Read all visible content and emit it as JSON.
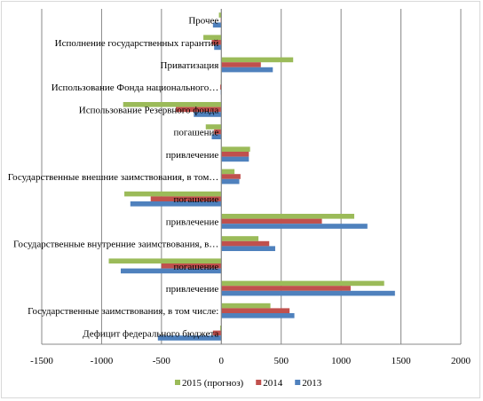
{
  "chart_data": {
    "type": "bar",
    "orientation": "horizontal",
    "title": "",
    "xlabel": "",
    "ylabel": "",
    "xlim": [
      -1500,
      2000
    ],
    "x_ticks": [
      -1500,
      -1000,
      -500,
      0,
      500,
      1000,
      1500,
      2000
    ],
    "grid": true,
    "legend_position": "bottom",
    "categories": [
      "Дефицит федерального бюджета",
      "Государственные заимствования, в том числе:",
      "привлечение",
      "погашение",
      "Государственные внутренние заимствования, в…",
      "привлечение",
      "погашение",
      "Государственные внешние заимствования, в том…",
      "привлечение",
      "погашение",
      "Использование Резервного фонда",
      "Использование Фонда национального…",
      "Приватизация",
      "Исполнение государственных гарантий",
      "Прочее"
    ],
    "series": [
      {
        "name": "2015 (прогноз)",
        "color": "#9bbb59",
        "values": [
          -10,
          410,
          1360,
          -940,
          310,
          1110,
          -810,
          110,
          240,
          -130,
          -820,
          -5,
          600,
          -150,
          -20
        ]
      },
      {
        "name": "2014",
        "color": "#c0504d",
        "values": [
          -70,
          570,
          1080,
          -500,
          400,
          840,
          -590,
          160,
          230,
          -60,
          -380,
          -10,
          330,
          -80,
          -5
        ]
      },
      {
        "name": "2013",
        "color": "#4f81bd",
        "values": [
          -530,
          610,
          1450,
          -840,
          450,
          1220,
          -760,
          150,
          230,
          -80,
          -230,
          -5,
          430,
          -60,
          -70
        ]
      }
    ]
  }
}
